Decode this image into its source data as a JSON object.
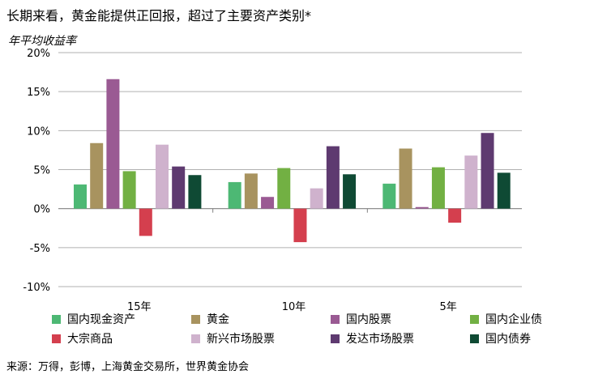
{
  "chart_data": {
    "type": "bar",
    "title": "长期来看，黄金能提供正回报，超过了主要资产类别*",
    "ylabel": "年平均收益率",
    "xlabel": "",
    "categories": [
      "15年",
      "10年",
      "5年"
    ],
    "ylim": [
      -10,
      20
    ],
    "yticks": [
      -10,
      -5,
      0,
      5,
      10,
      15,
      20
    ],
    "ytick_labels": [
      "-10%",
      "-5%",
      "0%",
      "5%",
      "10%",
      "15%",
      "20%"
    ],
    "grid": true,
    "legend_position": "bottom",
    "series": [
      {
        "name": "国内现金资产",
        "color": "#4db874",
        "values": [
          3.1,
          3.4,
          3.2
        ]
      },
      {
        "name": "黄金",
        "color": "#a8935f",
        "values": [
          8.4,
          4.5,
          7.7
        ]
      },
      {
        "name": "国内股票",
        "color": "#9a5a93",
        "values": [
          16.6,
          1.5,
          0.2
        ]
      },
      {
        "name": "国内企业债",
        "color": "#72b043",
        "values": [
          4.8,
          5.2,
          5.3
        ]
      },
      {
        "name": "大宗商品",
        "color": "#d43f4e",
        "values": [
          -3.5,
          -4.3,
          -1.8
        ]
      },
      {
        "name": "新兴市场股票",
        "color": "#cfb2cd",
        "values": [
          8.2,
          2.6,
          6.8
        ]
      },
      {
        "name": "发达市场股票",
        "color": "#5e3a70",
        "values": [
          5.4,
          8.0,
          9.7
        ]
      },
      {
        "name": "国内债券",
        "color": "#0f4a34",
        "values": [
          4.3,
          4.4,
          4.6
        ]
      }
    ]
  },
  "source": "来源：万得，彭博，上海黄金交易所，世界黄金协会"
}
